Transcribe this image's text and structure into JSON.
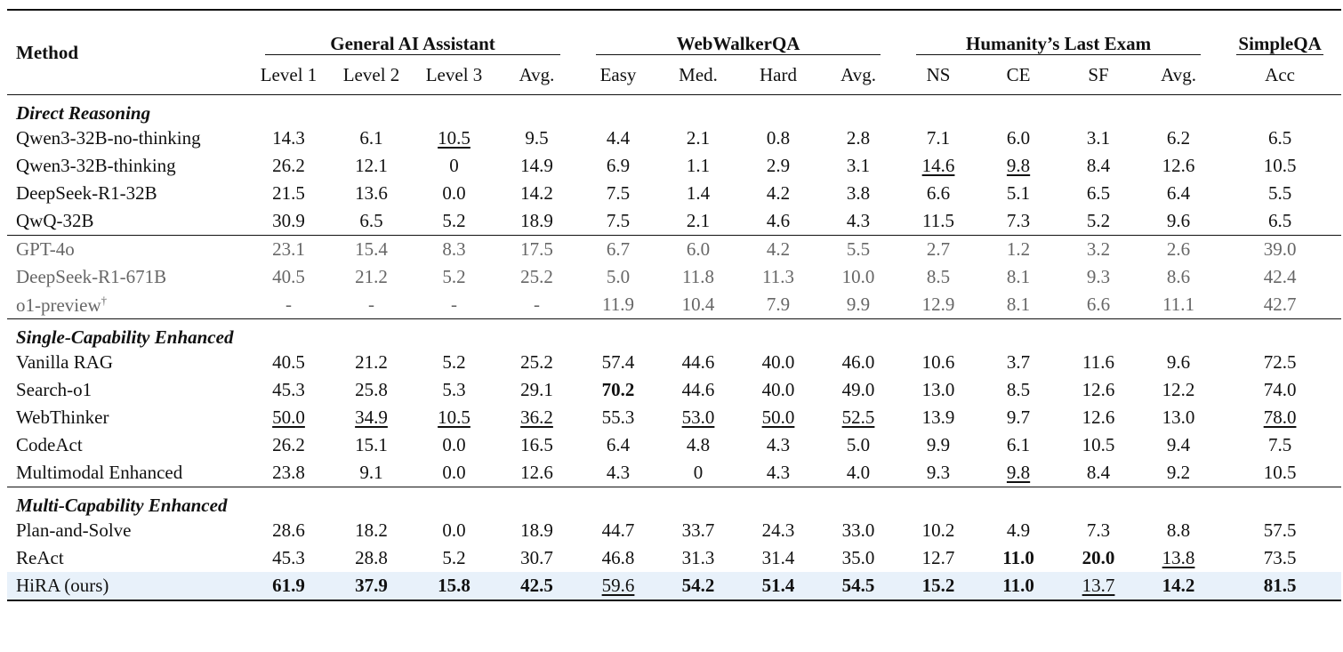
{
  "header": {
    "method": "Method",
    "groups": [
      "General AI Assistant",
      "WebWalkerQA",
      "Humanity’s Last Exam",
      "SimpleQA"
    ],
    "subcolumns": [
      "Level 1",
      "Level 2",
      "Level 3",
      "Avg.",
      "Easy",
      "Med.",
      "Hard",
      "Avg.",
      "NS",
      "CE",
      "SF",
      "Avg.",
      "Acc"
    ]
  },
  "sections": {
    "direct": "Direct Reasoning",
    "single": "Single-Capability Enhanced",
    "multi": "Multi-Capability Enhanced"
  },
  "rows": {
    "qwen_nothink": {
      "name": "Qwen3-32B-no-thinking",
      "v": [
        "14.3",
        "6.1",
        "10.5",
        "9.5",
        "4.4",
        "2.1",
        "0.8",
        "2.8",
        "7.1",
        "6.0",
        "3.1",
        "6.2",
        "6.5"
      ]
    },
    "qwen_think": {
      "name": "Qwen3-32B-thinking",
      "v": [
        "26.2",
        "12.1",
        "0",
        "14.9",
        "6.9",
        "1.1",
        "2.9",
        "3.1",
        "14.6",
        "9.8",
        "8.4",
        "12.6",
        "10.5"
      ]
    },
    "ds_r1_32b": {
      "name": "DeepSeek-R1-32B",
      "v": [
        "21.5",
        "13.6",
        "0.0",
        "14.2",
        "7.5",
        "1.4",
        "4.2",
        "3.8",
        "6.6",
        "5.1",
        "6.5",
        "6.4",
        "5.5"
      ]
    },
    "qwq": {
      "name": "QwQ-32B",
      "v": [
        "30.9",
        "6.5",
        "5.2",
        "18.9",
        "7.5",
        "2.1",
        "4.6",
        "4.3",
        "11.5",
        "7.3",
        "5.2",
        "9.6",
        "6.5"
      ]
    },
    "gpt4o": {
      "name": "GPT-4o",
      "v": [
        "23.1",
        "15.4",
        "8.3",
        "17.5",
        "6.7",
        "6.0",
        "4.2",
        "5.5",
        "2.7",
        "1.2",
        "3.2",
        "2.6",
        "39.0"
      ]
    },
    "ds_r1_671b": {
      "name": "DeepSeek-R1-671B",
      "v": [
        "40.5",
        "21.2",
        "5.2",
        "25.2",
        "5.0",
        "11.8",
        "11.3",
        "10.0",
        "8.5",
        "8.1",
        "9.3",
        "8.6",
        "42.4"
      ]
    },
    "o1": {
      "name": "o1-preview",
      "sup": "†",
      "v": [
        "-",
        "-",
        "-",
        "-",
        "11.9",
        "10.4",
        "7.9",
        "9.9",
        "12.9",
        "8.1",
        "6.6",
        "11.1",
        "42.7"
      ]
    },
    "vanilla_rag": {
      "name": "Vanilla RAG",
      "v": [
        "40.5",
        "21.2",
        "5.2",
        "25.2",
        "57.4",
        "44.6",
        "40.0",
        "46.0",
        "10.6",
        "3.7",
        "11.6",
        "9.6",
        "72.5"
      ]
    },
    "search_o1": {
      "name": "Search-o1",
      "v": [
        "45.3",
        "25.8",
        "5.3",
        "29.1",
        "70.2",
        "44.6",
        "40.0",
        "49.0",
        "13.0",
        "8.5",
        "12.6",
        "12.2",
        "74.0"
      ]
    },
    "webthinker": {
      "name": "WebThinker",
      "v": [
        "50.0",
        "34.9",
        "10.5",
        "36.2",
        "55.3",
        "53.0",
        "50.0",
        "52.5",
        "13.9",
        "9.7",
        "12.6",
        "13.0",
        "78.0"
      ]
    },
    "codeact": {
      "name": "CodeAct",
      "v": [
        "26.2",
        "15.1",
        "0.0",
        "16.5",
        "6.4",
        "4.8",
        "4.3",
        "5.0",
        "9.9",
        "6.1",
        "10.5",
        "9.4",
        "7.5"
      ]
    },
    "multimodal": {
      "name": "Multimodal Enhanced",
      "v": [
        "23.8",
        "9.1",
        "0.0",
        "12.6",
        "4.3",
        "0",
        "4.3",
        "4.0",
        "9.3",
        "9.8",
        "8.4",
        "9.2",
        "10.5"
      ]
    },
    "plan_solve": {
      "name": "Plan-and-Solve",
      "v": [
        "28.6",
        "18.2",
        "0.0",
        "18.9",
        "44.7",
        "33.7",
        "24.3",
        "33.0",
        "10.2",
        "4.9",
        "7.3",
        "8.8",
        "57.5"
      ]
    },
    "react": {
      "name": "ReAct",
      "v": [
        "45.3",
        "28.8",
        "5.2",
        "30.7",
        "46.8",
        "31.3",
        "31.4",
        "35.0",
        "12.7",
        "11.0",
        "20.0",
        "13.8",
        "73.5"
      ]
    },
    "hira": {
      "name": "HiRA (ours)",
      "v": [
        "61.9",
        "37.9",
        "15.8",
        "42.5",
        "59.6",
        "54.2",
        "51.4",
        "54.5",
        "15.2",
        "11.0",
        "13.7",
        "14.2",
        "81.5"
      ]
    }
  }
}
